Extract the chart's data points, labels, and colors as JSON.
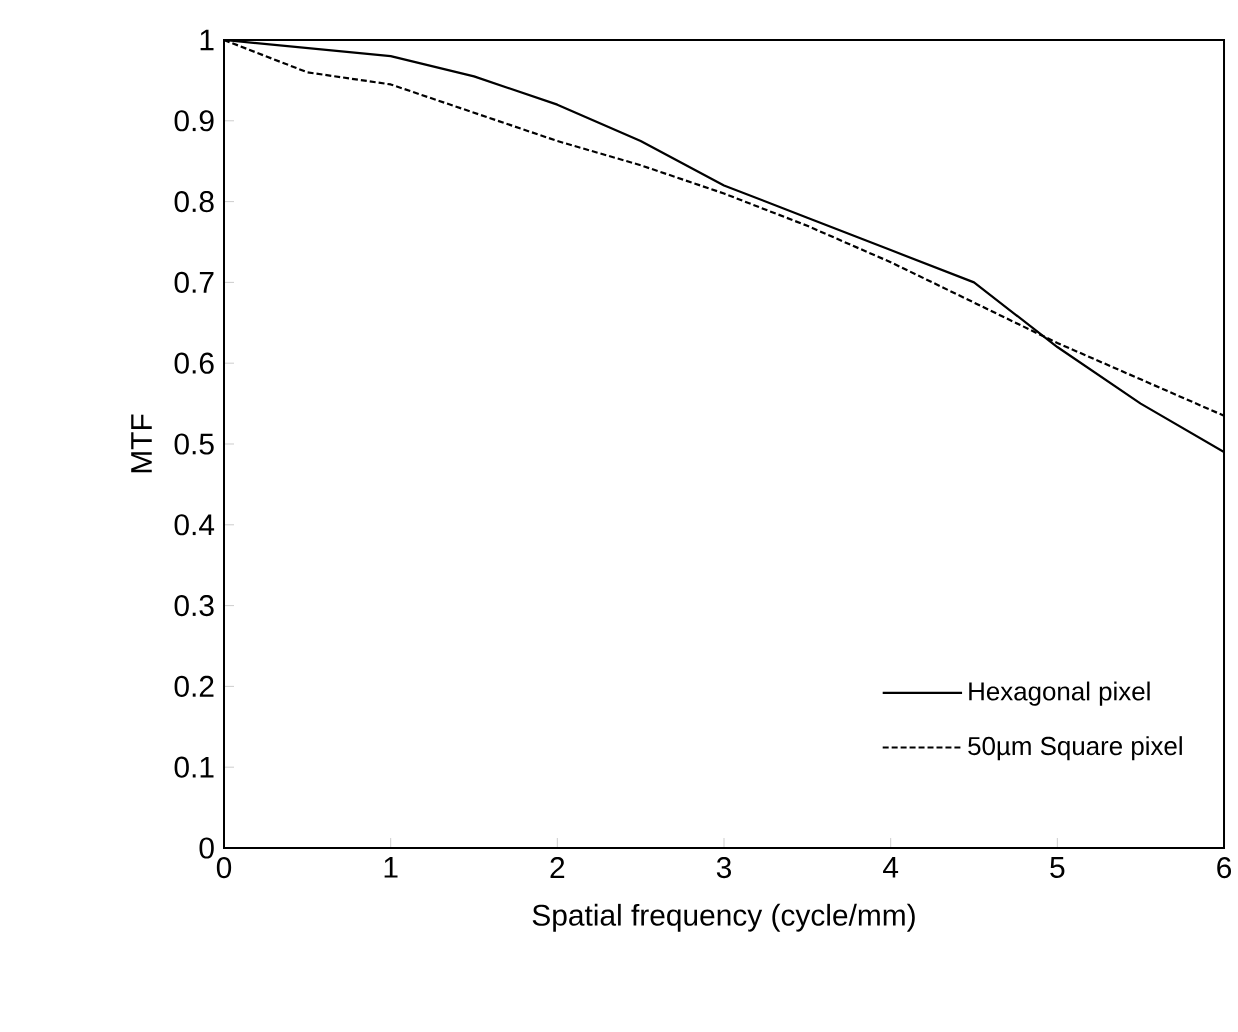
{
  "chart_data": {
    "type": "line",
    "xlabel": "Spatial frequency (cycle/mm)",
    "ylabel": "MTF",
    "x": [
      0,
      0.5,
      1,
      1.5,
      2,
      2.5,
      3,
      3.5,
      4,
      4.5,
      5,
      5.5,
      6
    ],
    "series": [
      {
        "name": "Hexagonal pixel",
        "color": "#000000",
        "line_style": "solid",
        "values": [
          1.0,
          0.99,
          0.98,
          0.955,
          0.92,
          0.875,
          0.82,
          0.78,
          0.74,
          0.7,
          0.62,
          0.55,
          0.49
        ]
      },
      {
        "name": "50µm Square pixel",
        "color": "#000000",
        "line_style": "dashed",
        "values": [
          1.0,
          0.96,
          0.945,
          0.91,
          0.875,
          0.845,
          0.81,
          0.77,
          0.725,
          0.675,
          0.625,
          0.58,
          0.535
        ]
      }
    ],
    "xlim": [
      0,
      6
    ],
    "ylim": [
      0,
      1
    ],
    "xticks": [
      0,
      1,
      2,
      3,
      4,
      5,
      6
    ],
    "yticks": [
      0,
      0.1,
      0.2,
      0.3,
      0.4,
      0.5,
      0.6,
      0.7,
      0.8,
      0.9,
      1
    ],
    "legend": "bottom right",
    "marker": "none",
    "grid": false
  }
}
